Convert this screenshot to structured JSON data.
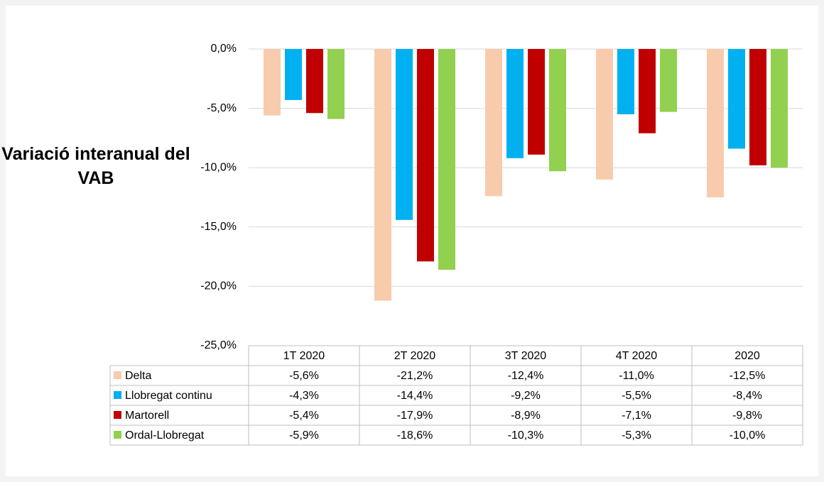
{
  "chart_data": {
    "type": "bar",
    "ylabel": "Variació interanual del VAB",
    "categories": [
      "1T 2020",
      "2T 2020",
      "3T 2020",
      "4T 2020",
      "2020"
    ],
    "series": [
      {
        "name": "Delta",
        "color": "#f8cbad",
        "values": [
          -5.6,
          -21.2,
          -12.4,
          -11.0,
          -12.5
        ],
        "value_labels": [
          "-5,6%",
          "-21,2%",
          "-12,4%",
          "-11,0%",
          "-12,5%"
        ]
      },
      {
        "name": "Llobregat continu",
        "color": "#00b0f0",
        "values": [
          -4.3,
          -14.4,
          -9.2,
          -5.5,
          -8.4
        ],
        "value_labels": [
          "-4,3%",
          "-14,4%",
          "-9,2%",
          "-5,5%",
          "-8,4%"
        ]
      },
      {
        "name": "Martorell",
        "color": "#c00000",
        "values": [
          -5.4,
          -17.9,
          -8.9,
          -7.1,
          -9.8
        ],
        "value_labels": [
          "-5,4%",
          "-17,9%",
          "-8,9%",
          "-7,1%",
          "-9,8%"
        ]
      },
      {
        "name": "Ordal-Llobregat",
        "color": "#92d050",
        "values": [
          -5.9,
          -18.6,
          -10.3,
          -5.3,
          -10.0
        ],
        "value_labels": [
          "-5,9%",
          "-18,6%",
          "-10,3%",
          "-5,3%",
          "-10,0%"
        ]
      }
    ],
    "ylim": [
      -25,
      0
    ],
    "yticks": [
      {
        "value": 0,
        "label": "0,0%"
      },
      {
        "value": -5,
        "label": "-5,0%"
      },
      {
        "value": -10,
        "label": "-10,0%"
      },
      {
        "value": -15,
        "label": "-15,0%"
      },
      {
        "value": -20,
        "label": "-20,0%"
      },
      {
        "value": -25,
        "label": "-25,0%"
      }
    ],
    "grid": true
  }
}
